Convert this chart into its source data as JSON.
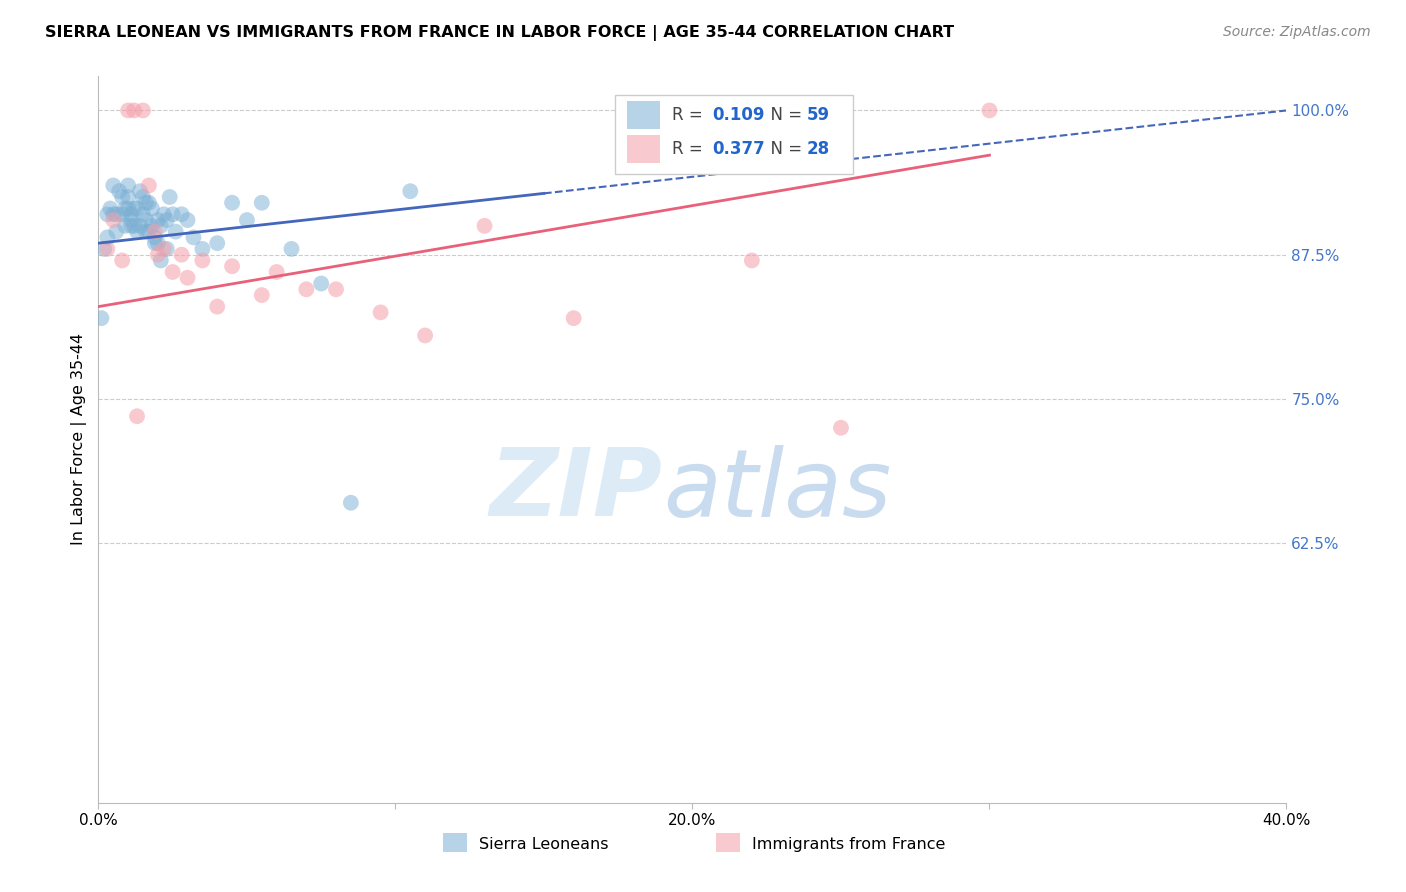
{
  "title": "SIERRA LEONEAN VS IMMIGRANTS FROM FRANCE IN LABOR FORCE | AGE 35-44 CORRELATION CHART",
  "source": "Source: ZipAtlas.com",
  "y_ticks": [
    100.0,
    87.5,
    75.0,
    62.5
  ],
  "x_ticks": [
    0.0,
    10.0,
    20.0,
    30.0,
    40.0
  ],
  "ylim_min": 40.0,
  "ylim_max": 103.0,
  "xlim_min": 0.0,
  "xlim_max": 40.0,
  "blue_R": 0.109,
  "blue_N": 59,
  "pink_R": 0.377,
  "pink_N": 28,
  "legend_label_blue": "Sierra Leoneans",
  "legend_label_pink": "Immigrants from France",
  "blue_color": "#7BAFD4",
  "pink_color": "#F4A0AA",
  "blue_line_color": "#4466BB",
  "pink_line_color": "#E8607A",
  "background_color": "#FFFFFF",
  "blue_x": [
    0.1,
    0.2,
    0.3,
    0.4,
    0.5,
    0.5,
    0.6,
    0.7,
    0.8,
    0.8,
    0.9,
    1.0,
    1.0,
    1.0,
    1.1,
    1.1,
    1.2,
    1.2,
    1.3,
    1.3,
    1.4,
    1.4,
    1.5,
    1.5,
    1.6,
    1.6,
    1.7,
    1.7,
    1.8,
    1.8,
    1.9,
    2.0,
    2.0,
    2.1,
    2.2,
    2.3,
    2.3,
    2.4,
    2.5,
    2.6,
    2.8,
    3.0,
    3.2,
    3.5,
    4.0,
    4.5,
    5.0,
    5.5,
    6.5,
    7.5,
    8.5,
    10.5,
    0.3,
    0.6,
    0.9,
    1.1,
    1.6,
    1.9,
    2.1
  ],
  "blue_y": [
    82.0,
    88.0,
    91.0,
    91.5,
    91.0,
    93.5,
    89.5,
    93.0,
    92.5,
    91.0,
    90.0,
    93.5,
    92.5,
    91.5,
    91.0,
    90.5,
    90.0,
    91.5,
    89.5,
    91.5,
    90.0,
    93.0,
    92.5,
    91.0,
    90.5,
    92.0,
    89.5,
    92.0,
    91.5,
    90.0,
    89.0,
    90.5,
    88.5,
    90.0,
    91.0,
    88.0,
    90.5,
    92.5,
    91.0,
    89.5,
    91.0,
    90.5,
    89.0,
    88.0,
    88.5,
    92.0,
    90.5,
    92.0,
    88.0,
    85.0,
    66.0,
    93.0,
    89.0,
    91.0,
    91.5,
    90.0,
    89.5,
    88.5,
    87.0
  ],
  "pink_x": [
    0.3,
    0.5,
    0.8,
    1.0,
    1.2,
    1.5,
    1.7,
    1.9,
    2.0,
    2.2,
    2.5,
    2.8,
    3.0,
    3.5,
    4.0,
    4.5,
    5.5,
    6.0,
    7.0,
    8.0,
    9.5,
    11.0,
    13.0,
    16.0,
    22.0,
    25.0,
    30.0,
    1.3
  ],
  "pink_y": [
    88.0,
    90.5,
    87.0,
    100.0,
    100.0,
    100.0,
    93.5,
    89.5,
    87.5,
    88.0,
    86.0,
    87.5,
    85.5,
    87.0,
    83.0,
    86.5,
    84.0,
    86.0,
    84.5,
    84.5,
    82.5,
    80.5,
    90.0,
    82.0,
    87.0,
    72.5,
    100.0,
    73.5
  ],
  "blue_trendline_x0": 0.0,
  "blue_trendline_y0": 88.5,
  "blue_trendline_x1": 40.0,
  "blue_trendline_y1": 100.0,
  "pink_trendline_x0": 0.0,
  "pink_trendline_y0": 83.0,
  "pink_trendline_x1": 40.0,
  "pink_trendline_y1": 100.5,
  "blue_solid_end_x": 15.0,
  "pink_solid_end_x": 30.0
}
